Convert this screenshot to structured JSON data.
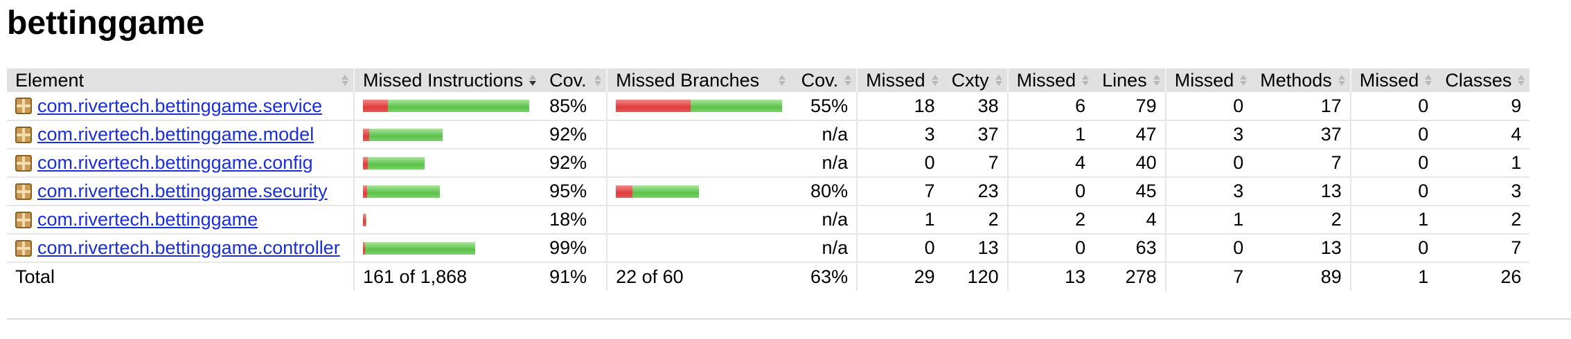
{
  "title": "bettinggame",
  "columns": [
    "Element",
    "Missed Instructions",
    "Cov.",
    "Missed Branches",
    "Cov.",
    "Missed",
    "Cxty",
    "Missed",
    "Lines",
    "Missed",
    "Methods",
    "Missed",
    "Classes"
  ],
  "rows": [
    {
      "name": "com.rivertech.bettinggame.service",
      "instr_missed_frac": 0.15,
      "instr_total": 1,
      "instr_cov": "85%",
      "br_missed_frac": 0.45,
      "br_total": 1,
      "br_cov": "55%",
      "cxty_missed": "18",
      "cxty": "38",
      "lines_missed": "6",
      "lines": "79",
      "methods_missed": "0",
      "methods": "17",
      "classes_missed": "0",
      "classes": "9"
    },
    {
      "name": "com.rivertech.bettinggame.model",
      "instr_missed_frac": 0.08,
      "instr_total": 0.48,
      "instr_cov": "92%",
      "br_missed_frac": 0,
      "br_total": 0,
      "br_cov": "n/a",
      "cxty_missed": "3",
      "cxty": "37",
      "lines_missed": "1",
      "lines": "47",
      "methods_missed": "3",
      "methods": "37",
      "classes_missed": "0",
      "classes": "4"
    },
    {
      "name": "com.rivertech.bettinggame.config",
      "instr_missed_frac": 0.08,
      "instr_total": 0.37,
      "instr_cov": "92%",
      "br_missed_frac": 0,
      "br_total": 0,
      "br_cov": "n/a",
      "cxty_missed": "0",
      "cxty": "7",
      "lines_missed": "4",
      "lines": "40",
      "methods_missed": "0",
      "methods": "7",
      "classes_missed": "0",
      "classes": "1"
    },
    {
      "name": "com.rivertech.bettinggame.security",
      "instr_missed_frac": 0.05,
      "instr_total": 0.46,
      "instr_cov": "95%",
      "br_missed_frac": 0.2,
      "br_total": 0.5,
      "br_cov": "80%",
      "cxty_missed": "7",
      "cxty": "23",
      "lines_missed": "0",
      "lines": "45",
      "methods_missed": "3",
      "methods": "13",
      "classes_missed": "0",
      "classes": "3"
    },
    {
      "name": "com.rivertech.bettinggame",
      "instr_missed_frac": 0.82,
      "instr_total": 0.02,
      "instr_cov": "18%",
      "br_missed_frac": 0,
      "br_total": 0,
      "br_cov": "n/a",
      "cxty_missed": "1",
      "cxty": "2",
      "lines_missed": "2",
      "lines": "4",
      "methods_missed": "1",
      "methods": "2",
      "classes_missed": "1",
      "classes": "2"
    },
    {
      "name": "com.rivertech.bettinggame.controller",
      "instr_missed_frac": 0.01,
      "instr_total": 0.67,
      "instr_cov": "99%",
      "br_missed_frac": 0,
      "br_total": 0,
      "br_cov": "n/a",
      "cxty_missed": "0",
      "cxty": "13",
      "lines_missed": "0",
      "lines": "63",
      "methods_missed": "0",
      "methods": "13",
      "classes_missed": "0",
      "classes": "7"
    }
  ],
  "total": {
    "label": "Total",
    "instr": "161 of 1,868",
    "instr_cov": "91%",
    "br": "22 of 60",
    "br_cov": "63%",
    "cxty_missed": "29",
    "cxty": "120",
    "lines_missed": "13",
    "lines": "278",
    "methods_missed": "7",
    "methods": "89",
    "classes_missed": "1",
    "classes": "26"
  },
  "colors": {
    "missed": "#e03b3b",
    "covered": "#5cc14a",
    "link": "#1a2fd8"
  }
}
